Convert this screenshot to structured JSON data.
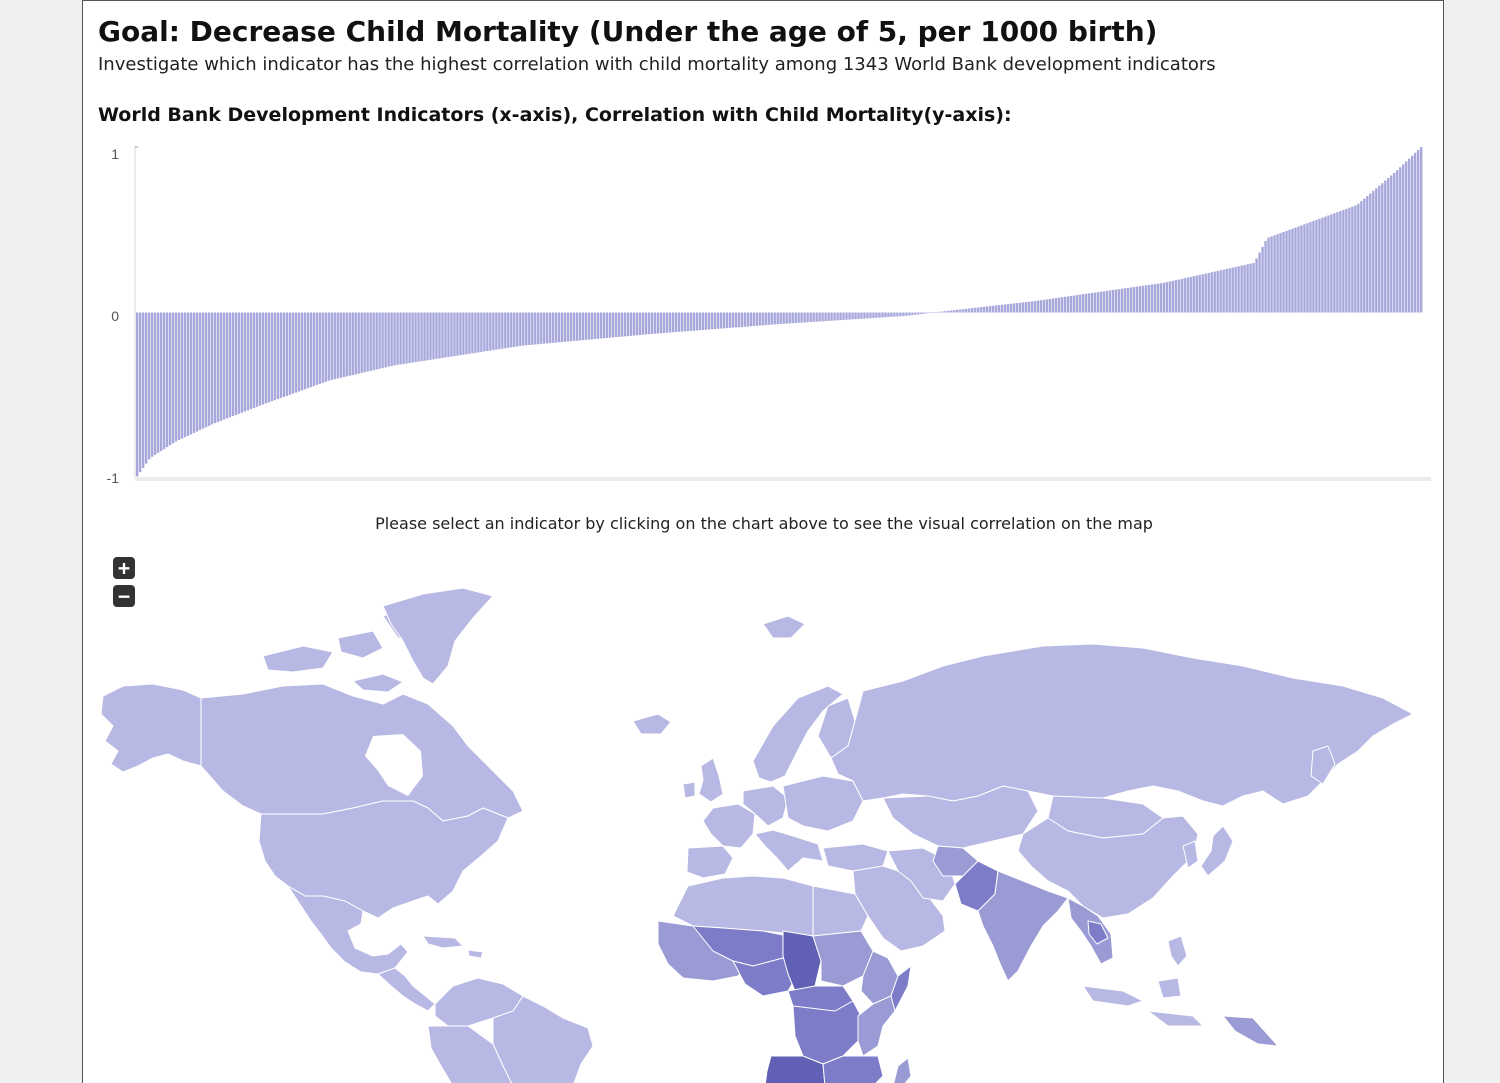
{
  "header": {
    "title": "Goal: Decrease Child Mortality (Under the age of 5, per 1000 birth)",
    "subtitle": "Investigate which indicator has the highest correlation with child mortality among 1343 World Bank development indicators"
  },
  "chart": {
    "heading": "World Bank Development Indicators (x-axis), Correlation with Child Mortality(y-axis):"
  },
  "chart_data": {
    "type": "bar",
    "indicator_count": 1343,
    "ylim": [
      -1,
      1
    ],
    "yticks": [
      "1",
      "0",
      "-1"
    ],
    "xlabel": "",
    "ylabel": "",
    "sorted_ascending": true,
    "curve_samples": [
      {
        "rank_fraction": 0.0,
        "value": -0.99
      },
      {
        "rank_fraction": 0.01,
        "value": -0.88
      },
      {
        "rank_fraction": 0.03,
        "value": -0.78
      },
      {
        "rank_fraction": 0.06,
        "value": -0.67
      },
      {
        "rank_fraction": 0.1,
        "value": -0.55
      },
      {
        "rank_fraction": 0.15,
        "value": -0.41
      },
      {
        "rank_fraction": 0.2,
        "value": -0.32
      },
      {
        "rank_fraction": 0.3,
        "value": -0.2
      },
      {
        "rank_fraction": 0.4,
        "value": -0.13
      },
      {
        "rank_fraction": 0.5,
        "value": -0.07
      },
      {
        "rank_fraction": 0.6,
        "value": -0.02
      },
      {
        "rank_fraction": 0.62,
        "value": 0.0
      },
      {
        "rank_fraction": 0.7,
        "value": 0.07
      },
      {
        "rank_fraction": 0.8,
        "value": 0.18
      },
      {
        "rank_fraction": 0.87,
        "value": 0.3
      },
      {
        "rank_fraction": 0.88,
        "value": 0.45
      },
      {
        "rank_fraction": 0.95,
        "value": 0.65
      },
      {
        "rank_fraction": 0.98,
        "value": 0.85
      },
      {
        "rank_fraction": 1.0,
        "value": 1.0
      }
    ],
    "bar_color": "#a7a7dc"
  },
  "map": {
    "instruction": "Please select an indicator by clicking on the chart above to see the visual correlation on the map",
    "zoom_in_label": "+",
    "zoom_out_label": "−",
    "colors": {
      "base": "#b8b8e4",
      "mid": "#9a9ad4",
      "high": "#7c7cc8",
      "highest": "#6060b4"
    }
  },
  "colors": {
    "page_background": "#f0f0f0",
    "panel_background": "#ffffff",
    "accent": "#a7a7dc"
  }
}
